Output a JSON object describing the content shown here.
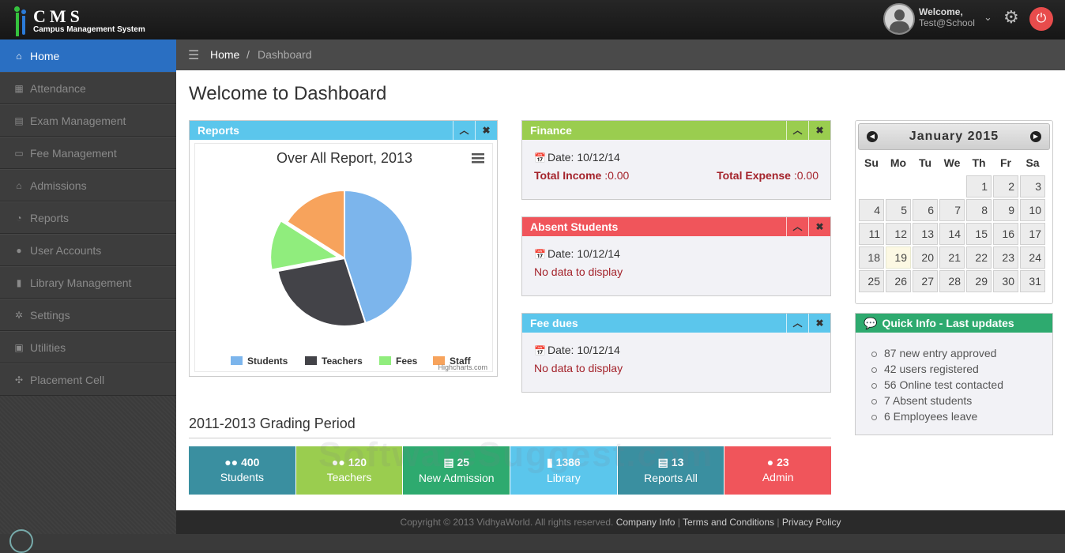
{
  "header": {
    "logo_text": "CMS",
    "logo_subtitle": "Campus Management System",
    "welcome": "Welcome,",
    "username": "Test@School"
  },
  "icons": {
    "avatar": "user-avatar-icon",
    "dropdown": "chevron-down-icon",
    "settings": "gears-icon",
    "power": "power-icon"
  },
  "sidebar": {
    "items": [
      {
        "label": "Home",
        "icon": "home-icon",
        "active": true
      },
      {
        "label": "Attendance",
        "icon": "calendar-icon"
      },
      {
        "label": "Exam Management",
        "icon": "file-icon"
      },
      {
        "label": "Fee Management",
        "icon": "money-icon"
      },
      {
        "label": "Admissions",
        "icon": "graduation-cap-icon"
      },
      {
        "label": "Reports",
        "icon": "pie-chart-icon"
      },
      {
        "label": "User Accounts",
        "icon": "user-icon"
      },
      {
        "label": "Library Management",
        "icon": "book-icon"
      },
      {
        "label": "Settings",
        "icon": "gear-icon"
      },
      {
        "label": "Utilities",
        "icon": "briefcase-icon"
      },
      {
        "label": "Placement Cell",
        "icon": "crosshairs-icon"
      }
    ]
  },
  "breadcrumb": {
    "home": "Home",
    "separator": "/",
    "current": "Dashboard"
  },
  "page_title": "Welcome to Dashboard",
  "reports_panel": {
    "title": "Reports"
  },
  "chart_data": {
    "type": "pie",
    "title": "Over All Report, 2013",
    "credit": "Highcharts.com",
    "legend_position": "bottom",
    "slices": [
      {
        "name": "Students",
        "value": 45,
        "color": "#7cb5ec"
      },
      {
        "name": "Teachers",
        "value": 27,
        "color": "#434348"
      },
      {
        "name": "Fees",
        "value": 12,
        "color": "#90ed7d"
      },
      {
        "name": "Staff",
        "value": 16,
        "color": "#f7a35c"
      }
    ]
  },
  "finance": {
    "title": "Finance",
    "date_label": "Date:",
    "date": "10/12/14",
    "income_label": "Total Income",
    "income_value": ":0.00",
    "expense_label": "Total Expense",
    "expense_value": ":0.00"
  },
  "absent_students": {
    "title": "Absent Students",
    "date_label": "Date:",
    "date": "10/12/14",
    "message": "No data to display"
  },
  "fee_dues": {
    "title": "Fee dues",
    "date_label": "Date:",
    "date": "10/12/14",
    "message": "No data to display"
  },
  "calendar": {
    "title": "January 2015",
    "weekdays": [
      "Su",
      "Mo",
      "Tu",
      "We",
      "Th",
      "Fr",
      "Sa"
    ],
    "leading_blanks": 4,
    "days": 31,
    "today": 19
  },
  "quick_info": {
    "title": "Quick Info - Last updates",
    "items": [
      "87 new entry approved",
      "42 users registered",
      "56 Online test contacted",
      "7 Absent students",
      "6 Employees leave"
    ]
  },
  "grading": {
    "title": "2011-2013 Grading Period",
    "tiles": [
      {
        "count": "400",
        "label": "Students",
        "icon": "users-icon",
        "color": "#3a8fa0"
      },
      {
        "count": "120",
        "label": "Teachers",
        "icon": "users-icon",
        "color": "#9acd4f"
      },
      {
        "count": "25",
        "label": "New Admission",
        "icon": "list-icon",
        "color": "#2eaa6f"
      },
      {
        "count": "1386",
        "label": "Library",
        "icon": "book-icon",
        "color": "#5bc6ec"
      },
      {
        "count": "13",
        "label": "Reports All",
        "icon": "file-icon",
        "color": "#3a8fa0"
      },
      {
        "count": "23",
        "label": "Admin",
        "icon": "user-icon",
        "color": "#f0555b"
      }
    ]
  },
  "watermark": "SoftwareSuggest.com",
  "footer": {
    "copyright": "Copyright © 2013 VidhyaWorld. All rights reserved.",
    "links": [
      "Company Info",
      "Terms and Conditions",
      "Privacy Policy"
    ]
  }
}
